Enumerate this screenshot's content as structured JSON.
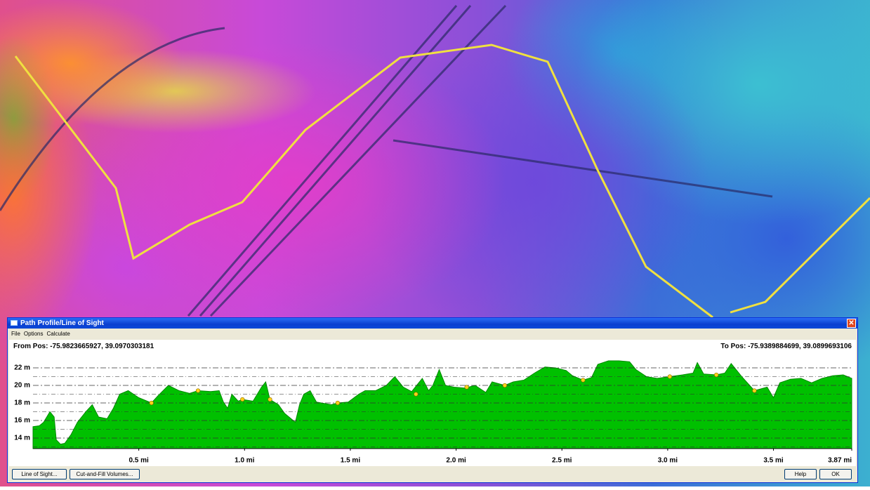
{
  "window": {
    "title": "Path Profile/Line of Sight",
    "menu": [
      "File",
      "Options",
      "Calculate"
    ],
    "from_pos": "From Pos: -75.9823665927, 39.0970303181",
    "to_pos": "To Pos: -75.9389884699, 39.0899693106",
    "buttons_left": [
      "Line of Sight...",
      "Cut-and-Fill Volumes..."
    ],
    "buttons_right": [
      "Help",
      "OK"
    ]
  },
  "chart_data": {
    "type": "area",
    "color": "#00c000",
    "x": [
      0.0,
      0.03,
      0.05,
      0.08,
      0.1,
      0.11,
      0.13,
      0.15,
      0.18,
      0.21,
      0.25,
      0.28,
      0.31,
      0.35,
      0.38,
      0.41,
      0.45,
      0.5,
      0.56,
      0.59,
      0.64,
      0.69,
      0.74,
      0.78,
      0.84,
      0.88,
      0.9,
      0.92,
      0.94,
      0.97,
      0.99,
      1.04,
      1.08,
      1.1,
      1.12,
      1.16,
      1.19,
      1.24,
      1.26,
      1.28,
      1.31,
      1.34,
      1.41,
      1.44,
      1.49,
      1.54,
      1.57,
      1.62,
      1.67,
      1.71,
      1.75,
      1.79,
      1.82,
      1.84,
      1.87,
      1.89,
      1.92,
      1.95,
      1.99,
      2.04,
      2.09,
      2.14,
      2.17,
      2.23,
      2.27,
      2.32,
      2.37,
      2.42,
      2.47,
      2.52,
      2.55,
      2.6,
      2.64,
      2.67,
      2.72,
      2.77,
      2.82,
      2.85,
      2.9,
      2.95,
      3.01,
      3.07,
      3.12,
      3.14,
      3.17,
      3.23,
      3.27,
      3.3,
      3.35,
      3.41,
      3.47,
      3.5,
      3.53,
      3.58,
      3.63,
      3.68,
      3.73,
      3.78,
      3.83,
      3.87
    ],
    "values": [
      15.3,
      15.4,
      15.8,
      17.0,
      16.4,
      13.8,
      13.3,
      13.4,
      14.4,
      15.8,
      17.0,
      17.8,
      16.4,
      16.2,
      17.4,
      19.0,
      19.4,
      18.6,
      18.0,
      18.8,
      20.0,
      19.4,
      19.1,
      19.4,
      19.3,
      19.4,
      18.1,
      17.4,
      19.0,
      18.2,
      18.4,
      18.2,
      19.8,
      20.4,
      18.4,
      17.8,
      16.8,
      15.8,
      17.8,
      19.0,
      19.4,
      18.1,
      17.8,
      18.0,
      18.1,
      19.0,
      19.4,
      19.4,
      20.0,
      21.0,
      19.8,
      19.3,
      20.2,
      20.8,
      19.4,
      20.0,
      21.8,
      20.0,
      19.8,
      19.7,
      20.0,
      19.2,
      20.4,
      20.0,
      20.4,
      20.6,
      21.4,
      22.1,
      22.0,
      21.7,
      21.1,
      20.6,
      20.9,
      22.4,
      22.8,
      22.8,
      22.7,
      21.8,
      21.0,
      20.8,
      21.0,
      21.2,
      21.4,
      22.6,
      21.3,
      21.2,
      21.4,
      22.5,
      21.0,
      19.4,
      19.8,
      18.6,
      20.3,
      20.7,
      20.8,
      20.3,
      20.8,
      21.1,
      21.2,
      20.8
    ],
    "points": {
      "color": "#ffd21a",
      "x": [
        0.56,
        0.78,
        0.99,
        1.12,
        1.44,
        1.81,
        2.05,
        2.23,
        2.6,
        3.01,
        3.23,
        3.41
      ],
      "values": [
        18.0,
        19.4,
        18.4,
        18.4,
        18.0,
        19.0,
        19.8,
        20.0,
        20.6,
        21.0,
        21.2,
        19.4
      ]
    },
    "xlim": [
      0,
      3.87
    ],
    "xticks": [
      {
        "value": 0.5,
        "label": "0.5 mi"
      },
      {
        "value": 1.0,
        "label": "1.0 mi"
      },
      {
        "value": 1.5,
        "label": "1.5 mi"
      },
      {
        "value": 2.0,
        "label": "2.0 mi"
      },
      {
        "value": 2.5,
        "label": "2.5 mi"
      },
      {
        "value": 3.0,
        "label": "3.0 mi"
      },
      {
        "value": 3.5,
        "label": "3.5 mi"
      },
      {
        "value": 3.87,
        "label": "3.87 mi"
      }
    ],
    "ylim": [
      12.8,
      24.8
    ],
    "yticks": [
      {
        "value": 14,
        "label": "14 m"
      },
      {
        "value": 16,
        "label": "16 m"
      },
      {
        "value": 18,
        "label": "18 m"
      },
      {
        "value": 20,
        "label": "20 m"
      },
      {
        "value": 22,
        "label": "22 m"
      }
    ],
    "minor_yticks": [
      13,
      15,
      17,
      19,
      21
    ],
    "grid": true
  }
}
